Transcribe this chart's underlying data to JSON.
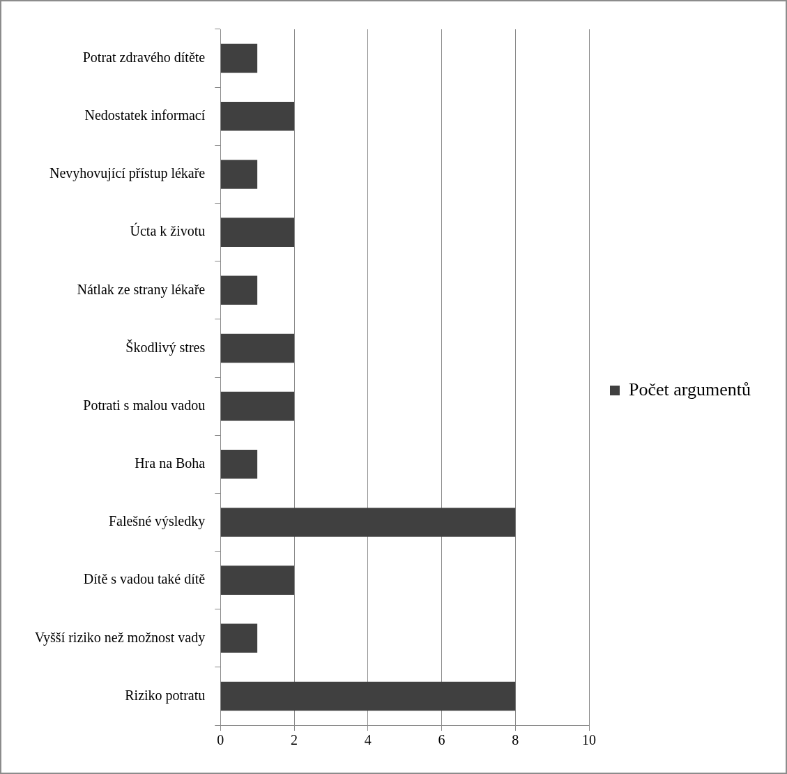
{
  "chart_data": {
    "type": "bar",
    "orientation": "horizontal",
    "categories": [
      "Potrat zdravého dítěte",
      "Nedostatek informací",
      "Nevyhovující přístup lékaře",
      "Úcta k životu",
      "Nátlak ze strany lékaře",
      "Škodlivý stres",
      "Potrati s malou vadou",
      "Hra na Boha",
      "Falešné výsledky",
      "Dítě s vadou také dítě",
      "Vyšší riziko než možnost vady",
      "Riziko potratu"
    ],
    "series": [
      {
        "name": "Počet argumentů",
        "color": "#404040",
        "values": [
          1,
          2,
          1,
          2,
          1,
          2,
          2,
          1,
          8,
          2,
          1,
          8
        ]
      }
    ],
    "xlim": [
      0,
      10
    ],
    "xticks": [
      0,
      2,
      4,
      6,
      8,
      10
    ],
    "grid": "x",
    "legend": "right"
  }
}
